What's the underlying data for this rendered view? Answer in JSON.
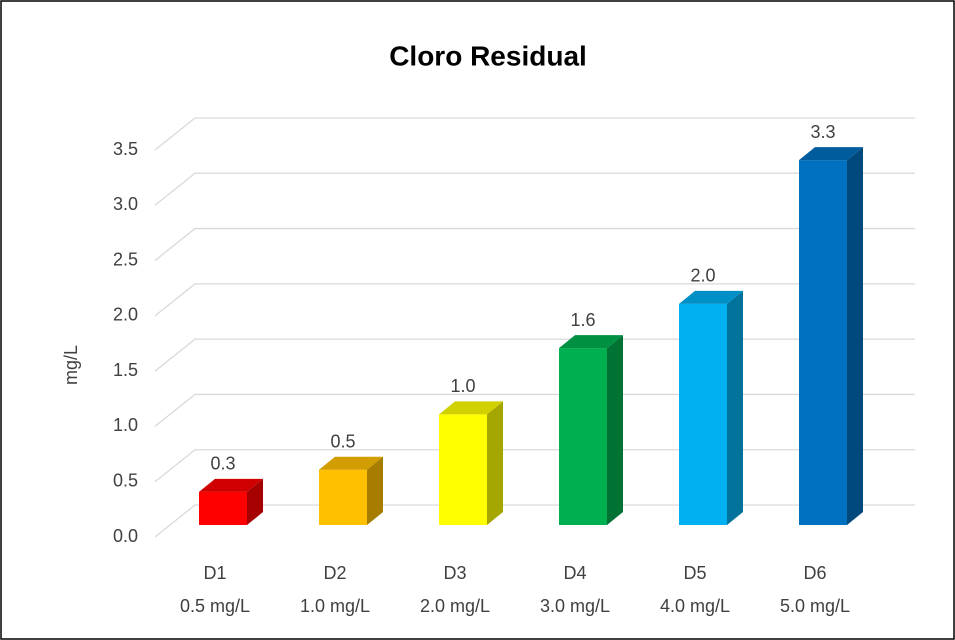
{
  "chart_data": {
    "type": "bar3d",
    "title": "Cloro Residual",
    "y_label": "mg/L",
    "categories": [
      [
        "D1",
        "0.5 mg/L"
      ],
      [
        "D2",
        "1.0 mg/L"
      ],
      [
        "D3",
        "2.0 mg/L"
      ],
      [
        "D4",
        "3.0 mg/L"
      ],
      [
        "D5",
        "4.0 mg/L"
      ],
      [
        "D6",
        "5.0 mg/L"
      ]
    ],
    "values": [
      0.3,
      0.5,
      1.0,
      1.6,
      2.0,
      3.3
    ],
    "value_labels": [
      "0.3",
      "0.5",
      "1.0",
      "1.6",
      "2.0",
      "3.3"
    ],
    "colors": [
      "#ff0000",
      "#ffc000",
      "#ffff00",
      "#00b050",
      "#00b0f0",
      "#0070c0"
    ],
    "ylim": [
      0,
      3.5
    ],
    "yticks": [
      {
        "value": 0,
        "label": "0.0"
      },
      0.5,
      {
        "value": 1,
        "label": "1.0"
      },
      1.5,
      {
        "value": 2,
        "label": "2.0"
      },
      2.5,
      {
        "value": 3,
        "label": "3.0"
      },
      3.5
    ],
    "grid": true
  }
}
